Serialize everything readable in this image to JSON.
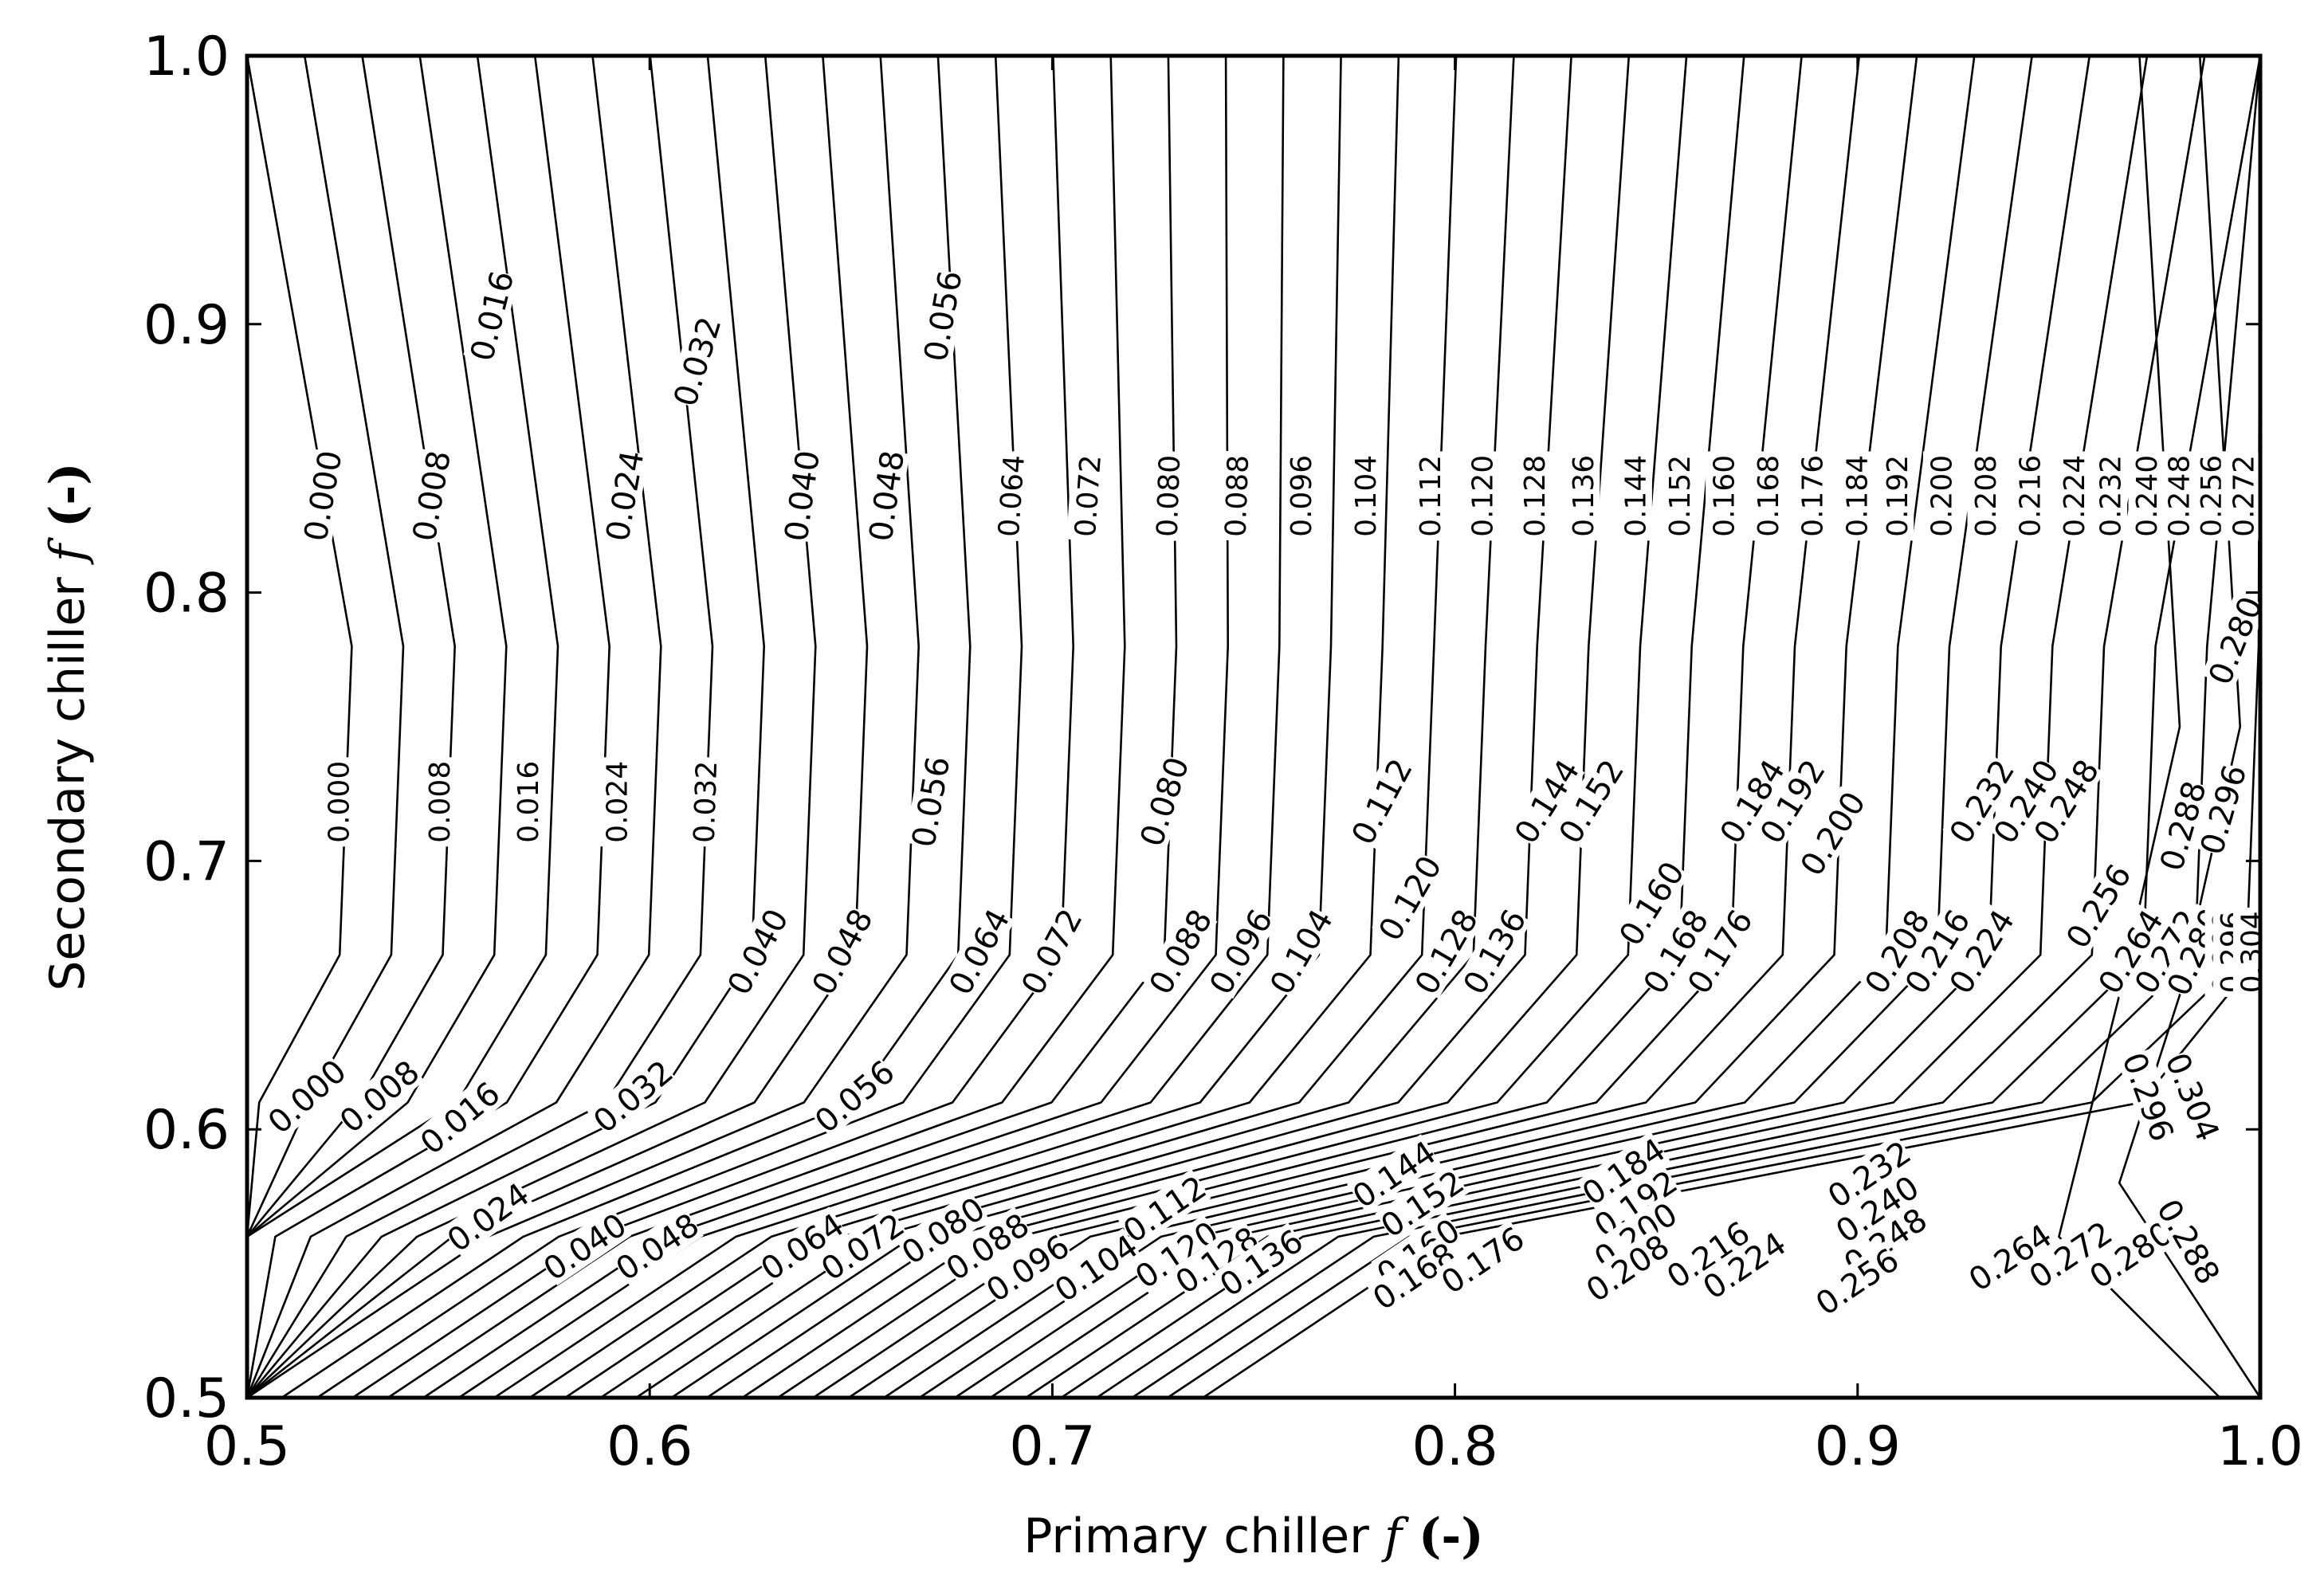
{
  "chart_data": {
    "type": "contour",
    "xlabel": {
      "prefix": "Primary chiller ",
      "symbol": "f",
      "suffix": " (-)"
    },
    "ylabel": {
      "prefix": "Secondary chiller ",
      "symbol": "f",
      "suffix": " (-)"
    },
    "xlim": [
      0.5,
      1.0
    ],
    "ylim": [
      0.5,
      1.0
    ],
    "xticks": [
      "0.5",
      "0.6",
      "0.7",
      "0.8",
      "0.9",
      "1.0"
    ],
    "yticks": [
      "0.5",
      "0.6",
      "0.7",
      "0.8",
      "0.9",
      "1.0"
    ],
    "grid": false,
    "line_color": "#000000",
    "levels": [
      0.0,
      0.008,
      0.016,
      0.024,
      0.032,
      0.04,
      0.048,
      0.056,
      0.064,
      0.072,
      0.08,
      0.088,
      0.096,
      0.104,
      0.112,
      0.12,
      0.128,
      0.136,
      0.144,
      0.152,
      0.16,
      0.168,
      0.176,
      0.184,
      0.192,
      0.2,
      0.208,
      0.216,
      0.224,
      0.232,
      0.24,
      0.248,
      0.256,
      0.264,
      0.272,
      0.28,
      0.288,
      0.296,
      0.304
    ],
    "contour_labels": [
      {
        "text": "0.000",
        "x": 0.519,
        "y": 0.836,
        "rot": -80
      },
      {
        "text": "0.008",
        "x": 0.546,
        "y": 0.836,
        "rot": -80
      },
      {
        "text": "0.016",
        "x": 0.561,
        "y": 0.903,
        "rot": -76
      },
      {
        "text": "0.024",
        "x": 0.594,
        "y": 0.836,
        "rot": -80
      },
      {
        "text": "0.032",
        "x": 0.612,
        "y": 0.886,
        "rot": -73
      },
      {
        "text": "0.040",
        "x": 0.638,
        "y": 0.836,
        "rot": -82
      },
      {
        "text": "0.048",
        "x": 0.659,
        "y": 0.836,
        "rot": -82
      },
      {
        "text": "0.056",
        "x": 0.673,
        "y": 0.903,
        "rot": -80
      },
      {
        "text": "0.064",
        "x": 0.69,
        "y": 0.836,
        "rot": -86
      },
      {
        "text": "0.072",
        "x": 0.709,
        "y": 0.836,
        "rot": -86
      },
      {
        "text": "0.080",
        "x": 0.729,
        "y": 0.836,
        "rot": -88
      },
      {
        "text": "0.088",
        "x": 0.746,
        "y": 0.836,
        "rot": -88
      },
      {
        "text": "0.096",
        "x": 0.762,
        "y": 0.836,
        "rot": -90
      },
      {
        "text": "0.104",
        "x": 0.778,
        "y": 0.836,
        "rot": -90
      },
      {
        "text": "0.112",
        "x": 0.794,
        "y": 0.836,
        "rot": -90
      },
      {
        "text": "0.120",
        "x": 0.807,
        "y": 0.836,
        "rot": -90
      },
      {
        "text": "0.128",
        "x": 0.82,
        "y": 0.836,
        "rot": -90
      },
      {
        "text": "0.136",
        "x": 0.832,
        "y": 0.836,
        "rot": -90
      },
      {
        "text": "0.144",
        "x": 0.845,
        "y": 0.836,
        "rot": -90
      },
      {
        "text": "0.152",
        "x": 0.856,
        "y": 0.836,
        "rot": -90
      },
      {
        "text": "0.160",
        "x": 0.867,
        "y": 0.836,
        "rot": -90
      },
      {
        "text": "0.168",
        "x": 0.878,
        "y": 0.836,
        "rot": -90
      },
      {
        "text": "0.176",
        "x": 0.889,
        "y": 0.836,
        "rot": -90
      },
      {
        "text": "0.184",
        "x": 0.9,
        "y": 0.836,
        "rot": -90
      },
      {
        "text": "0.192",
        "x": 0.91,
        "y": 0.836,
        "rot": -90
      },
      {
        "text": "0.200",
        "x": 0.921,
        "y": 0.836,
        "rot": -90
      },
      {
        "text": "0.208",
        "x": 0.932,
        "y": 0.836,
        "rot": -90
      },
      {
        "text": "0.216",
        "x": 0.943,
        "y": 0.836,
        "rot": -90
      },
      {
        "text": "0.224",
        "x": 0.954,
        "y": 0.836,
        "rot": -90
      },
      {
        "text": "0.232",
        "x": 0.963,
        "y": 0.836,
        "rot": -90
      },
      {
        "text": "0.240",
        "x": 0.972,
        "y": 0.836,
        "rot": -90
      },
      {
        "text": "0.248",
        "x": 0.98,
        "y": 0.836,
        "rot": -90
      },
      {
        "text": "0.256",
        "x": 0.988,
        "y": 0.836,
        "rot": -90
      },
      {
        "text": "0.264",
        "x": 0.995,
        "y": 0.836,
        "rot": -90
      },
      {
        "text": "0.272",
        "x": 1.005,
        "y": 0.836,
        "rot": -90
      },
      {
        "text": "0.280",
        "x": 0.994,
        "y": 0.782,
        "rot": -68
      },
      {
        "text": "0.000",
        "x": 0.523,
        "y": 0.722,
        "rot": -90
      },
      {
        "text": "0.008",
        "x": 0.548,
        "y": 0.722,
        "rot": -90
      },
      {
        "text": "0.016",
        "x": 0.57,
        "y": 0.722,
        "rot": -90
      },
      {
        "text": "0.024",
        "x": 0.592,
        "y": 0.722,
        "rot": -90
      },
      {
        "text": "0.032",
        "x": 0.614,
        "y": 0.722,
        "rot": -88
      },
      {
        "text": "0.056",
        "x": 0.67,
        "y": 0.722,
        "rot": -80
      },
      {
        "text": "0.080",
        "x": 0.728,
        "y": 0.722,
        "rot": -72
      },
      {
        "text": "0.112",
        "x": 0.782,
        "y": 0.722,
        "rot": -62
      },
      {
        "text": "0.144",
        "x": 0.823,
        "y": 0.722,
        "rot": -58
      },
      {
        "text": "0.152",
        "x": 0.834,
        "y": 0.722,
        "rot": -58
      },
      {
        "text": "0.184",
        "x": 0.874,
        "y": 0.722,
        "rot": -58
      },
      {
        "text": "0.192",
        "x": 0.884,
        "y": 0.722,
        "rot": -58
      },
      {
        "text": "0.200",
        "x": 0.894,
        "y": 0.71,
        "rot": -58
      },
      {
        "text": "0.232",
        "x": 0.931,
        "y": 0.722,
        "rot": -58
      },
      {
        "text": "0.240",
        "x": 0.942,
        "y": 0.722,
        "rot": -58
      },
      {
        "text": "0.248",
        "x": 0.952,
        "y": 0.722,
        "rot": -58
      },
      {
        "text": "0.288",
        "x": 0.981,
        "y": 0.713,
        "rot": -74
      },
      {
        "text": "0.296",
        "x": 0.991,
        "y": 0.719,
        "rot": -74
      },
      {
        "text": "0.040",
        "x": 0.627,
        "y": 0.666,
        "rot": -62
      },
      {
        "text": "0.048",
        "x": 0.648,
        "y": 0.666,
        "rot": -62
      },
      {
        "text": "0.064",
        "x": 0.682,
        "y": 0.666,
        "rot": -62
      },
      {
        "text": "0.072",
        "x": 0.7,
        "y": 0.666,
        "rot": -62
      },
      {
        "text": "0.088",
        "x": 0.732,
        "y": 0.666,
        "rot": -60
      },
      {
        "text": "0.096",
        "x": 0.747,
        "y": 0.666,
        "rot": -60
      },
      {
        "text": "0.104",
        "x": 0.762,
        "y": 0.666,
        "rot": -60
      },
      {
        "text": "0.120",
        "x": 0.789,
        "y": 0.686,
        "rot": -60
      },
      {
        "text": "0.128",
        "x": 0.798,
        "y": 0.666,
        "rot": -60
      },
      {
        "text": "0.136",
        "x": 0.81,
        "y": 0.666,
        "rot": -60
      },
      {
        "text": "0.160",
        "x": 0.849,
        "y": 0.684,
        "rot": -58
      },
      {
        "text": "0.168",
        "x": 0.855,
        "y": 0.666,
        "rot": -58
      },
      {
        "text": "0.176",
        "x": 0.866,
        "y": 0.666,
        "rot": -58
      },
      {
        "text": "0.208",
        "x": 0.91,
        "y": 0.666,
        "rot": -58
      },
      {
        "text": "0.216",
        "x": 0.92,
        "y": 0.666,
        "rot": -58
      },
      {
        "text": "0.224",
        "x": 0.931,
        "y": 0.666,
        "rot": -58
      },
      {
        "text": "0.256",
        "x": 0.96,
        "y": 0.683,
        "rot": -58
      },
      {
        "text": "0.264",
        "x": 0.968,
        "y": 0.666,
        "rot": -58
      },
      {
        "text": "0.272",
        "x": 0.977,
        "y": 0.666,
        "rot": -58
      },
      {
        "text": "0.280",
        "x": 0.984,
        "y": 0.666,
        "rot": -66
      },
      {
        "text": "0.288",
        "x": 0.991,
        "y": 0.666,
        "rot": -90
      },
      {
        "text": "0.296",
        "x": 0.993,
        "y": 0.666,
        "rot": -90
      },
      {
        "text": "0.304",
        "x": 0.998,
        "y": 0.666,
        "rot": -90
      },
      {
        "text": "0.296",
        "x": 0.972,
        "y": 0.612,
        "rot": 70
      },
      {
        "text": "0.304",
        "x": 0.983,
        "y": 0.612,
        "rot": 68
      },
      {
        "text": "0.000",
        "x": 0.515,
        "y": 0.612,
        "rot": -42
      },
      {
        "text": "0.008",
        "x": 0.533,
        "y": 0.612,
        "rot": -40
      },
      {
        "text": "0.016",
        "x": 0.553,
        "y": 0.604,
        "rot": -40
      },
      {
        "text": "0.032",
        "x": 0.596,
        "y": 0.612,
        "rot": -40
      },
      {
        "text": "0.056",
        "x": 0.651,
        "y": 0.612,
        "rot": -40
      },
      {
        "text": "0.024",
        "x": 0.56,
        "y": 0.567,
        "rot": -36
      },
      {
        "text": "0.040",
        "x": 0.584,
        "y": 0.556,
        "rot": -34
      },
      {
        "text": "0.048",
        "x": 0.602,
        "y": 0.556,
        "rot": -34
      },
      {
        "text": "0.064",
        "x": 0.638,
        "y": 0.556,
        "rot": -34
      },
      {
        "text": "0.072",
        "x": 0.653,
        "y": 0.556,
        "rot": -34
      },
      {
        "text": "0.080",
        "x": 0.673,
        "y": 0.562,
        "rot": -34
      },
      {
        "text": "0.088",
        "x": 0.684,
        "y": 0.556,
        "rot": -34
      },
      {
        "text": "0.096",
        "x": 0.694,
        "y": 0.548,
        "rot": -34
      },
      {
        "text": "0.104",
        "x": 0.711,
        "y": 0.548,
        "rot": -34
      },
      {
        "text": "0.112",
        "x": 0.728,
        "y": 0.57,
        "rot": -34
      },
      {
        "text": "0.120",
        "x": 0.731,
        "y": 0.553,
        "rot": -34
      },
      {
        "text": "0.128",
        "x": 0.741,
        "y": 0.551,
        "rot": -34
      },
      {
        "text": "0.136",
        "x": 0.752,
        "y": 0.55,
        "rot": -34
      },
      {
        "text": "0.144",
        "x": 0.785,
        "y": 0.583,
        "rot": -34
      },
      {
        "text": "0.152",
        "x": 0.792,
        "y": 0.572,
        "rot": -34
      },
      {
        "text": "0.160",
        "x": 0.791,
        "y": 0.554,
        "rot": -34
      },
      {
        "text": "0.168",
        "x": 0.79,
        "y": 0.545,
        "rot": -34
      },
      {
        "text": "0.176",
        "x": 0.807,
        "y": 0.551,
        "rot": -34
      },
      {
        "text": "0.184",
        "x": 0.842,
        "y": 0.584,
        "rot": -34
      },
      {
        "text": "0.192",
        "x": 0.845,
        "y": 0.572,
        "rot": -34
      },
      {
        "text": "0.200",
        "x": 0.845,
        "y": 0.56,
        "rot": -34
      },
      {
        "text": "0.208",
        "x": 0.843,
        "y": 0.548,
        "rot": -34
      },
      {
        "text": "0.216",
        "x": 0.863,
        "y": 0.553,
        "rot": -34
      },
      {
        "text": "0.224",
        "x": 0.872,
        "y": 0.549,
        "rot": -34
      },
      {
        "text": "0.232",
        "x": 0.903,
        "y": 0.583,
        "rot": -34
      },
      {
        "text": "0.240",
        "x": 0.905,
        "y": 0.57,
        "rot": -34
      },
      {
        "text": "0.248",
        "x": 0.907,
        "y": 0.558,
        "rot": -34
      },
      {
        "text": "0.256",
        "x": 0.9,
        "y": 0.543,
        "rot": -34
      },
      {
        "text": "0.264",
        "x": 0.938,
        "y": 0.552,
        "rot": -34
      },
      {
        "text": "0.272",
        "x": 0.953,
        "y": 0.553,
        "rot": -34
      },
      {
        "text": "0.280",
        "x": 0.968,
        "y": 0.553,
        "rot": -34
      },
      {
        "text": "0.288",
        "x": 0.982,
        "y": 0.558,
        "rot": 60
      }
    ]
  }
}
